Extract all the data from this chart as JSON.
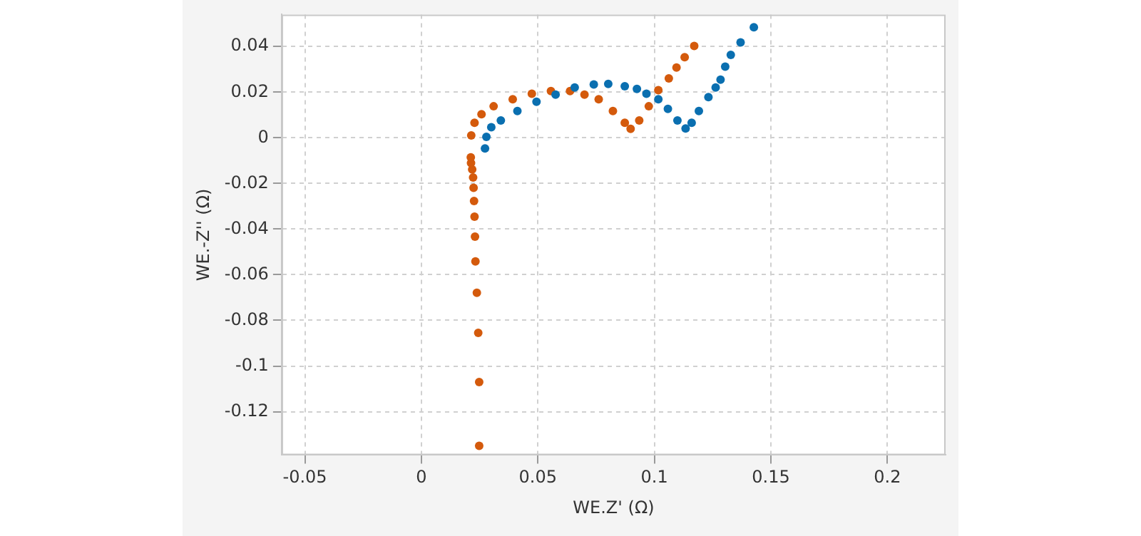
{
  "chart_data": {
    "type": "scatter",
    "xlabel": "WE.Z' (Ω)",
    "ylabel": "WE.-Z'' (Ω)",
    "xlim": [
      -0.06,
      0.225
    ],
    "xticks": [
      -0.05,
      0,
      0.05,
      0.1,
      0.15,
      0.2
    ],
    "ylim": [
      -0.139,
      0.054
    ],
    "yticks": [
      -0.12,
      -0.1,
      -0.08,
      -0.06,
      -0.04,
      -0.02,
      0,
      0.02,
      0.04
    ],
    "grid": true,
    "legend": false,
    "marker": "circle",
    "series": [
      {
        "color": "#0a6fb0",
        "x": [
          0.0273,
          0.0279,
          0.03,
          0.0341,
          0.0412,
          0.0494,
          0.0576,
          0.0658,
          0.074,
          0.0802,
          0.0873,
          0.0925,
          0.0966,
          0.1017,
          0.1058,
          0.1099,
          0.1134,
          0.116,
          0.1191,
          0.1232,
          0.1263,
          0.1284,
          0.1304,
          0.1328,
          0.137,
          0.1427
        ],
        "values": [
          -0.0047,
          0.0004,
          0.0046,
          0.0076,
          0.0117,
          0.0158,
          0.0189,
          0.022,
          0.0234,
          0.0236,
          0.0226,
          0.0214,
          0.0193,
          0.0169,
          0.0127,
          0.0076,
          0.0041,
          0.0066,
          0.0117,
          0.0178,
          0.022,
          0.0255,
          0.0312,
          0.0363,
          0.0418,
          0.0484
        ]
      },
      {
        "color": "#d45a0c",
        "x": [
          0.0248,
          0.0248,
          0.0244,
          0.0238,
          0.0232,
          0.023,
          0.0228,
          0.0226,
          0.0224,
          0.0222,
          0.0218,
          0.0213,
          0.0212,
          0.0214,
          0.0228,
          0.0258,
          0.031,
          0.0392,
          0.0474,
          0.0556,
          0.0638,
          0.07,
          0.0761,
          0.0822,
          0.0873,
          0.0898,
          0.0935,
          0.0976,
          0.1017,
          0.1062,
          0.1095,
          0.113,
          0.1171
        ],
        "values": [
          -0.135,
          -0.107,
          -0.0855,
          -0.0679,
          -0.0542,
          -0.0433,
          -0.0346,
          -0.0277,
          -0.0219,
          -0.0174,
          -0.0139,
          -0.0111,
          -0.0086,
          0.001,
          0.0066,
          0.0103,
          0.0138,
          0.0169,
          0.0193,
          0.0205,
          0.0205,
          0.0189,
          0.0169,
          0.0117,
          0.0066,
          0.0039,
          0.0076,
          0.0138,
          0.0209,
          0.026,
          0.0308,
          0.0353,
          0.0402
        ]
      }
    ]
  }
}
